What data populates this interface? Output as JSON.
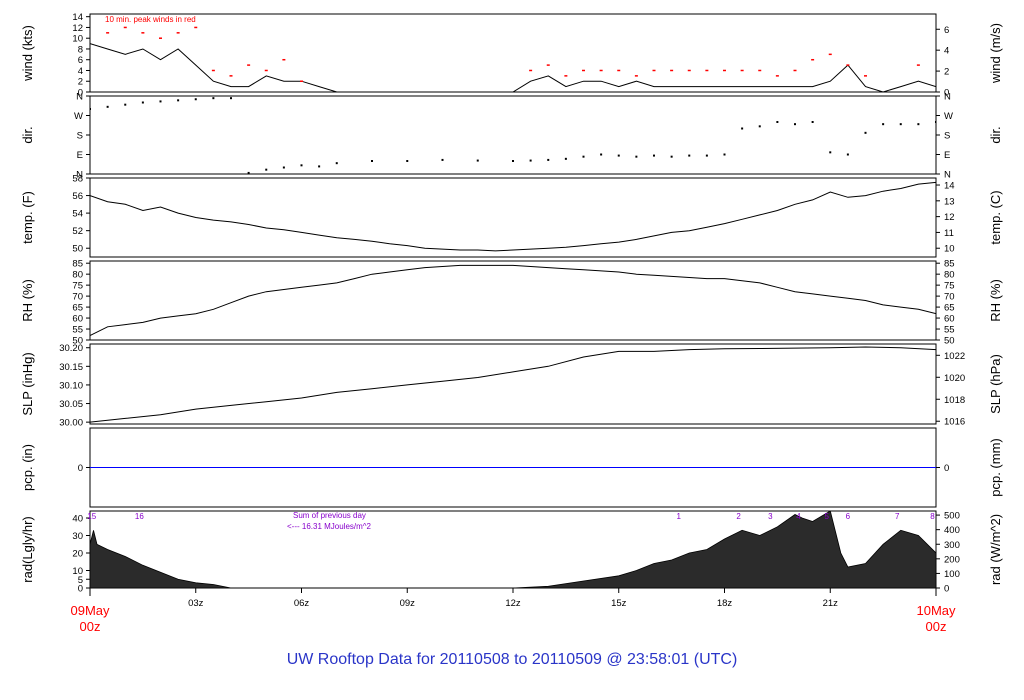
{
  "footer_title": "UW Rooftop Data for 20110508  to  20110509 @ 23:58:01  (UTC)",
  "colors": {
    "ink": "#000000",
    "peak": "#ff0000",
    "precip": "#0000ff",
    "annot": "#8800cc",
    "footer": "#2a35c8"
  },
  "time_axis": {
    "ticks": [
      "03z",
      "06z",
      "09z",
      "12z",
      "15z",
      "18z",
      "21z"
    ],
    "tick_hours": [
      3,
      6,
      9,
      12,
      15,
      18,
      21
    ],
    "start_label": [
      "09May",
      "00z"
    ],
    "end_label": [
      "10May",
      "00z"
    ],
    "hours_span": 24
  },
  "chart_data": [
    {
      "type": "line",
      "panel": "wind",
      "ylabel_left": "wind (kts)",
      "ylabel_right": "wind (m/s)",
      "left_ticks": [
        0,
        2,
        4,
        6,
        8,
        10,
        12,
        14
      ],
      "right_ticks": [
        0,
        2,
        4,
        6
      ],
      "ylim": [
        0,
        14.5
      ],
      "annotation": "10 min. peak winds in red",
      "series": [
        {
          "name": "wind",
          "x": [
            0,
            0.5,
            1,
            1.5,
            2,
            2.5,
            3,
            3.5,
            4,
            4.5,
            5,
            5.5,
            6,
            6.5,
            7,
            7.5,
            8,
            8.5,
            9,
            9.5,
            10,
            10.5,
            11,
            11.5,
            12,
            12.5,
            13,
            13.5,
            14,
            14.5,
            15,
            15.5,
            16,
            16.5,
            17,
            17.5,
            18,
            18.5,
            19,
            19.5,
            20,
            20.5,
            21,
            21.5,
            22,
            22.5,
            23,
            23.5,
            24
          ],
          "y": [
            9,
            8,
            7,
            8,
            6,
            8,
            5,
            2,
            1,
            1,
            3,
            2,
            2,
            1,
            0,
            0,
            0,
            0,
            0,
            0,
            0,
            0,
            0,
            0,
            0,
            2,
            3,
            1,
            2,
            2,
            1,
            2,
            1,
            1,
            1,
            1,
            1,
            1,
            1,
            1,
            1,
            1,
            2,
            5,
            1,
            0,
            1,
            2,
            1
          ]
        },
        {
          "name": "peak",
          "x": [
            0.5,
            1,
            1.5,
            2,
            2.5,
            3,
            3.5,
            4,
            4.5,
            5,
            5.5,
            6,
            12.5,
            13,
            13.5,
            14,
            14.5,
            15,
            15.5,
            16,
            16.5,
            17,
            17.5,
            18,
            18.5,
            19,
            19.5,
            20,
            20.5,
            21,
            21.5,
            22,
            23.5
          ],
          "y": [
            11,
            12,
            11,
            10,
            11,
            12,
            4,
            3,
            5,
            4,
            6,
            2,
            4,
            5,
            3,
            4,
            4,
            4,
            3,
            4,
            4,
            4,
            4,
            4,
            4,
            4,
            3,
            4,
            6,
            7,
            5,
            3,
            5
          ]
        }
      ]
    },
    {
      "type": "scatter",
      "panel": "dir",
      "ylabel_left": "dir.",
      "ylabel_right": "dir.",
      "left_ticks": [
        "N",
        "E",
        "S",
        "W",
        "N"
      ],
      "right_ticks": [
        "N",
        "E",
        "S",
        "W",
        "N"
      ],
      "ylim": [
        0,
        360
      ],
      "series": [
        {
          "name": "direction",
          "x": [
            0,
            0.5,
            1,
            1.5,
            2,
            2.5,
            3,
            3.5,
            4,
            4.5,
            5,
            5.5,
            6,
            6.5,
            7,
            8,
            9,
            10,
            11,
            12,
            12.5,
            13,
            13.5,
            14,
            14.5,
            15,
            15.5,
            16,
            16.5,
            17,
            17.5,
            18,
            18.5,
            19,
            19.5,
            20,
            20.5,
            21,
            21.5,
            22,
            22.5,
            23,
            23.5,
            24
          ],
          "y": [
            300,
            310,
            320,
            330,
            335,
            340,
            345,
            350,
            350,
            5,
            20,
            30,
            40,
            35,
            50,
            60,
            60,
            65,
            62,
            60,
            62,
            65,
            70,
            80,
            90,
            85,
            80,
            85,
            80,
            85,
            85,
            90,
            210,
            220,
            240,
            230,
            240,
            100,
            90,
            190,
            230,
            230,
            230,
            240
          ]
        }
      ]
    },
    {
      "type": "line",
      "panel": "temp",
      "ylabel_left": "temp. (F)",
      "ylabel_right": "temp. (C)",
      "left_ticks": [
        50,
        52,
        54,
        56,
        58
      ],
      "right_ticks": [
        10,
        11,
        12,
        13,
        14
      ],
      "ylim": [
        49,
        58
      ],
      "series": [
        {
          "name": "temperature",
          "x": [
            0,
            0.5,
            1,
            1.5,
            2,
            2.5,
            3,
            3.5,
            4,
            4.5,
            5,
            5.5,
            6,
            6.5,
            7,
            7.5,
            8,
            8.5,
            9,
            9.5,
            10,
            10.5,
            11,
            11.5,
            12,
            12.5,
            13,
            13.5,
            14,
            14.5,
            15,
            15.5,
            16,
            16.5,
            17,
            17.5,
            18,
            18.5,
            19,
            19.5,
            20,
            20.5,
            21,
            21.5,
            22,
            22.5,
            23,
            23.5,
            24
          ],
          "y": [
            56,
            55.3,
            55,
            54.3,
            54.7,
            54,
            53.5,
            53.2,
            53,
            52.7,
            52.3,
            52.1,
            51.8,
            51.5,
            51.2,
            51,
            50.8,
            50.5,
            50.3,
            50,
            49.9,
            49.8,
            49.8,
            49.7,
            49.8,
            49.9,
            50,
            50.1,
            50.3,
            50.5,
            50.7,
            51,
            51.4,
            51.8,
            52,
            52.4,
            52.8,
            53.3,
            53.8,
            54.3,
            55,
            55.5,
            56.4,
            55.8,
            56,
            56.5,
            56.8,
            57.3,
            57.5
          ]
        }
      ]
    },
    {
      "type": "line",
      "panel": "rh",
      "ylabel_left": "RH (%)",
      "ylabel_right": "RH (%)",
      "left_ticks": [
        50,
        55,
        60,
        65,
        70,
        75,
        80,
        85
      ],
      "right_ticks": [
        50,
        55,
        60,
        65,
        70,
        75,
        80,
        85
      ],
      "ylim": [
        50,
        86
      ],
      "series": [
        {
          "name": "relative humidity",
          "x": [
            0,
            0.5,
            1,
            1.5,
            2,
            2.5,
            3,
            3.5,
            4,
            4.5,
            5,
            5.5,
            6,
            6.5,
            7,
            7.5,
            8,
            8.5,
            9,
            9.5,
            10,
            10.5,
            11,
            11.5,
            12,
            12.5,
            13,
            13.5,
            14,
            14.5,
            15,
            15.5,
            16,
            16.5,
            17,
            17.5,
            18,
            18.5,
            19,
            19.5,
            20,
            20.5,
            21,
            21.5,
            22,
            22.5,
            23,
            23.5,
            24
          ],
          "y": [
            52,
            56,
            57,
            58,
            60,
            61,
            62,
            64,
            67,
            70,
            72,
            73,
            74,
            75,
            76,
            78,
            80,
            81,
            82,
            83,
            83.5,
            84,
            84,
            84,
            84,
            83.5,
            83,
            82.5,
            82,
            81.5,
            81,
            80,
            79.5,
            79,
            78.5,
            78,
            78,
            77,
            76,
            74,
            72,
            71,
            70,
            69,
            68,
            66,
            65,
            64,
            62
          ]
        }
      ]
    },
    {
      "type": "line",
      "panel": "slp",
      "ylabel_left": "SLP (inHg)",
      "ylabel_right": "SLP (hPa)",
      "left_ticks": [
        "30.00",
        "30.05",
        "30.10",
        "30.15",
        "30.20"
      ],
      "right_ticks": [
        1016,
        1018,
        1020,
        1022
      ],
      "ylim": [
        29.995,
        30.21
      ],
      "series": [
        {
          "name": "pressure",
          "x": [
            0,
            1,
            2,
            3,
            4,
            5,
            6,
            7,
            8,
            9,
            10,
            11,
            12,
            13,
            14,
            15,
            16,
            17,
            18,
            19,
            20,
            21,
            22,
            23,
            24
          ],
          "y": [
            30.0,
            30.01,
            30.02,
            30.035,
            30.045,
            30.055,
            30.065,
            30.08,
            30.09,
            30.1,
            30.11,
            30.12,
            30.135,
            30.15,
            30.175,
            30.19,
            30.19,
            30.195,
            30.197,
            30.198,
            30.199,
            30.2,
            30.202,
            30.2,
            30.195
          ]
        }
      ]
    },
    {
      "type": "line",
      "panel": "pcp",
      "ylabel_left": "pcp. (in)",
      "ylabel_right": "pcp. (mm)",
      "left_ticks": [
        0
      ],
      "right_ticks": [
        0
      ],
      "ylim": [
        -1,
        1
      ],
      "series": [
        {
          "name": "precip",
          "x": [
            0,
            24
          ],
          "y": [
            0,
            0
          ]
        }
      ]
    },
    {
      "type": "area",
      "panel": "rad",
      "ylabel_left": "rad(Lgly/hr)",
      "ylabel_right": "rad (W/m^2)",
      "left_ticks": [
        0,
        5,
        10,
        20,
        30,
        40
      ],
      "right_ticks": [
        0,
        100,
        200,
        300,
        400,
        500
      ],
      "ylim": [
        0,
        44
      ],
      "annotations": [
        "Sum of previous day",
        "<--- 16.31 MJoules/m^2"
      ],
      "top_markers": [
        "15",
        "16",
        "1",
        "2",
        "3",
        "4",
        "5",
        "6",
        "7",
        "8"
      ],
      "top_marker_hours": [
        0.05,
        1.4,
        16.7,
        18.4,
        19.3,
        20.1,
        20.9,
        21.5,
        22.9,
        23.9
      ],
      "series": [
        {
          "name": "radiation",
          "x": [
            0,
            0.1,
            0.2,
            0.5,
            1,
            1.5,
            2,
            2.5,
            3,
            3.5,
            4,
            11.5,
            12,
            13,
            14,
            15,
            15.5,
            16,
            16.5,
            17,
            17.5,
            18,
            18.5,
            19,
            19.5,
            20,
            20.2,
            20.5,
            21,
            21.3,
            21.5,
            22,
            22.5,
            23,
            23.5,
            24
          ],
          "y": [
            25,
            33,
            25,
            22,
            18,
            13,
            9,
            5,
            3,
            2,
            0,
            0,
            0,
            1,
            4,
            7,
            10,
            14,
            16,
            20,
            22,
            28,
            33,
            30,
            35,
            42,
            40,
            38,
            44,
            20,
            12,
            14,
            25,
            33,
            30,
            20
          ]
        }
      ]
    }
  ]
}
